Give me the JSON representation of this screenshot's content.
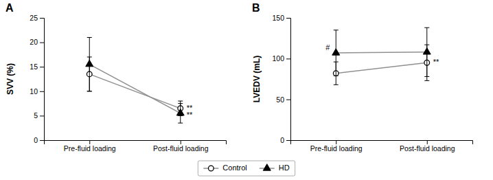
{
  "chart_data": [
    {
      "type": "line",
      "title": "A",
      "ylabel": "SVV (%)",
      "categories": [
        "Pre-fluid loading",
        "Post-fluid loading"
      ],
      "ylim": [
        0,
        25
      ],
      "yticks": [
        0,
        5,
        10,
        15,
        20,
        25
      ],
      "color": "#909090",
      "legend": "bottom",
      "series": [
        {
          "name": "Control",
          "marker": "circle",
          "values": [
            13.5,
            6.5
          ],
          "errors": [
            3.5,
            1.5
          ]
        },
        {
          "name": "HD",
          "marker": "triangle",
          "values": [
            15.5,
            5.5
          ],
          "errors": [
            5.5,
            2.0
          ]
        }
      ],
      "annotations": [
        {
          "text": "**",
          "x": "Post-fluid loading",
          "y": 6.5
        },
        {
          "text": "**",
          "x": "Post-fluid loading",
          "y": 5.0
        }
      ]
    },
    {
      "type": "line",
      "title": "B",
      "ylabel": "LVEDV (mL)",
      "categories": [
        "Pre-fluid loading",
        "Post-fluid loading"
      ],
      "ylim": [
        0,
        150
      ],
      "yticks": [
        0,
        50,
        100,
        150
      ],
      "color": "#909090",
      "series": [
        {
          "name": "Control",
          "marker": "circle",
          "values": [
            82,
            95
          ],
          "errors": [
            14,
            22
          ]
        },
        {
          "name": "HD",
          "marker": "triangle",
          "values": [
            107,
            108
          ],
          "errors": [
            28,
            30
          ]
        }
      ],
      "annotations": [
        {
          "text": "#",
          "x": "Pre-fluid loading",
          "y": 110
        },
        {
          "text": "**",
          "x": "Post-fluid loading",
          "y": 95
        }
      ]
    }
  ]
}
